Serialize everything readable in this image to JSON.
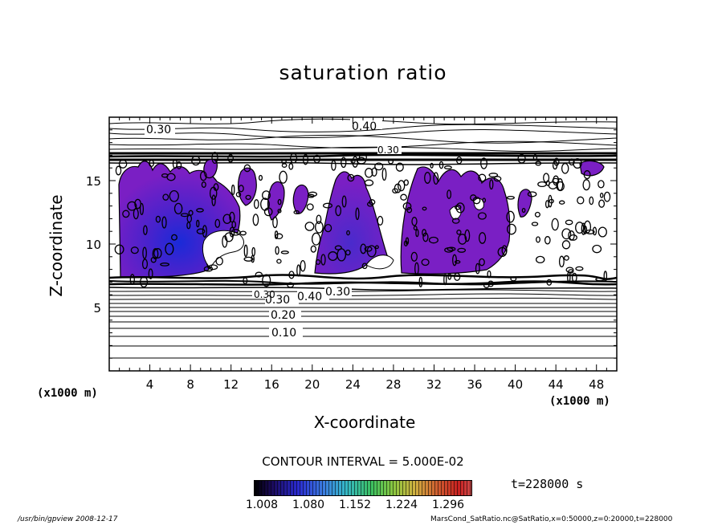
{
  "title": "saturation ratio",
  "chart_data": {
    "type": "contour",
    "title": "saturation ratio",
    "xlabel": "X-coordinate",
    "ylabel": "Z-coordinate",
    "x_unit": "(x1000 m)",
    "xlim": [
      0,
      50
    ],
    "ylim": [
      0,
      20
    ],
    "x_ticks": [
      "4",
      "8",
      "12",
      "16",
      "20",
      "24",
      "28",
      "32",
      "36",
      "40",
      "44",
      "48"
    ],
    "y_ticks": [
      "5",
      "10",
      "15"
    ],
    "contour_labels": [
      "0.30",
      "0.40",
      "0.30",
      "0.30",
      "0.40",
      "0.30",
      "0.30",
      "0.20",
      "0.10"
    ],
    "contour_interval_text": "CONTOUR INTERVAL = 5.000E-02",
    "colorbar": {
      "ticks": [
        "1.008",
        "1.080",
        "1.152",
        "1.224",
        "1.296"
      ],
      "min": 1.008,
      "max": 1.296
    },
    "time_label": "t=228000 s",
    "fill_color": "#7a1fc4"
  },
  "footer": {
    "left": "/usr/bin/gpview   2008-12-17",
    "right": "MarsCond_SatRatio.nc@SatRatio,x=0:50000,z=0:20000,t=228000"
  }
}
